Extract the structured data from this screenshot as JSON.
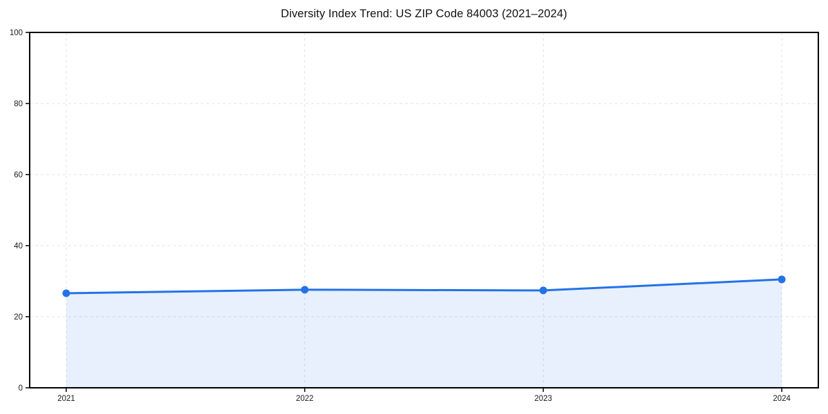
{
  "chart_data": {
    "type": "area",
    "title": "Diversity Index Trend: US ZIP Code 84003 (2021–2024)",
    "x": [
      2021,
      2022,
      2023,
      2024
    ],
    "x_tick_labels": [
      "2021",
      "2022",
      "2023",
      "2024"
    ],
    "series": [
      {
        "name": "Diversity Index",
        "values": [
          26.6,
          27.6,
          27.4,
          30.5
        ]
      }
    ],
    "xlabel": "",
    "ylabel": "",
    "ylim": [
      0,
      100
    ],
    "y_ticks": [
      0,
      20,
      40,
      60,
      80,
      100
    ],
    "grid": "dashed",
    "legend": "none",
    "style": {
      "line_color": "#2372e8",
      "marker_color": "#2372e8",
      "fill_color": "rgba(35,114,232,0.11)",
      "grid_color": "#e3e3e3",
      "spine_color": "#000000",
      "text_color": "#1a1a1a",
      "background": "#ffffff"
    }
  }
}
